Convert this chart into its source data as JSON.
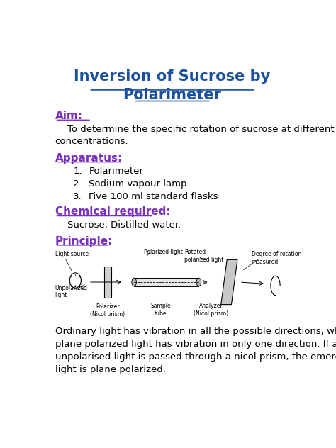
{
  "title_line1": "Inversion of Sucrose by",
  "title_line2": "Polarimeter",
  "title_color": "#1a4f9c",
  "heading_color": "#7b2fbe",
  "body_color": "#000000",
  "bg_color": "#ffffff",
  "aim_heading": "Aim:",
  "aim_body": "    To determine the specific rotation of sucrose at different\nconcentrations.",
  "apparatus_heading": "Apparatus:",
  "apparatus_items": [
    "Polarimeter",
    "Sodium vapour lamp",
    "Five 100 ml standard flasks"
  ],
  "chemical_heading": "Chemical required:",
  "chemical_body": "    Sucrose, Distilled water.",
  "principle_heading": "Principle:",
  "principle_body": "Ordinary light has vibration in all the possible directions, whereas\nplane polarized light has vibration in only one direction. If an\nunpolarised light is passed through a nicol prism, the emerging\nlight is plane polarized.",
  "font_size_title": 15,
  "font_size_heading": 11,
  "font_size_body": 9.5,
  "font_size_diag": 5.5
}
